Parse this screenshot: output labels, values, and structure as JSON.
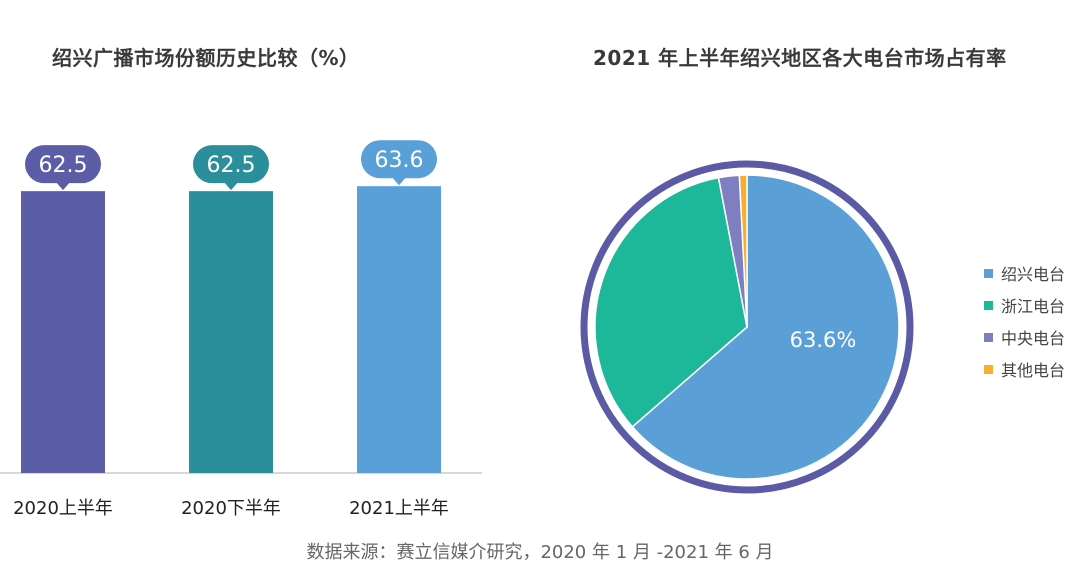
{
  "bar_title": "绍兴广播市场份额历史比较（%）",
  "pie_title": "2021 年上半年绍兴地区各大电台市场占有率",
  "source_note": "数据来源：赛立信媒介研究，2020 年 1 月 -2021 年 6 月",
  "chart_data": [
    {
      "type": "bar",
      "title": "绍兴广播市场份额历史比较（%）",
      "categories": [
        "2020上半年",
        "2020下半年",
        "2021上半年"
      ],
      "values": [
        62.5,
        62.5,
        63.6
      ],
      "value_labels": [
        "62.5",
        "62.5",
        "63.6"
      ],
      "colors": [
        "#5b5ea6",
        "#2b8f9b",
        "#5aa0d8"
      ],
      "grid": false
    },
    {
      "type": "pie",
      "title": "2021 年上半年绍兴地区各大电台市场占有率",
      "labels": [
        "绍兴电台",
        "浙江电台",
        "中央电台",
        "其他电台"
      ],
      "values": [
        63.6,
        33.4,
        2.2,
        0.8
      ],
      "visible_label": "63.6%",
      "colors": [
        "#5a9fd6",
        "#1db89a",
        "#7e7ec0",
        "#f6b02c"
      ],
      "ring_color": "#5b5aa4",
      "legend_position": "right"
    }
  ]
}
